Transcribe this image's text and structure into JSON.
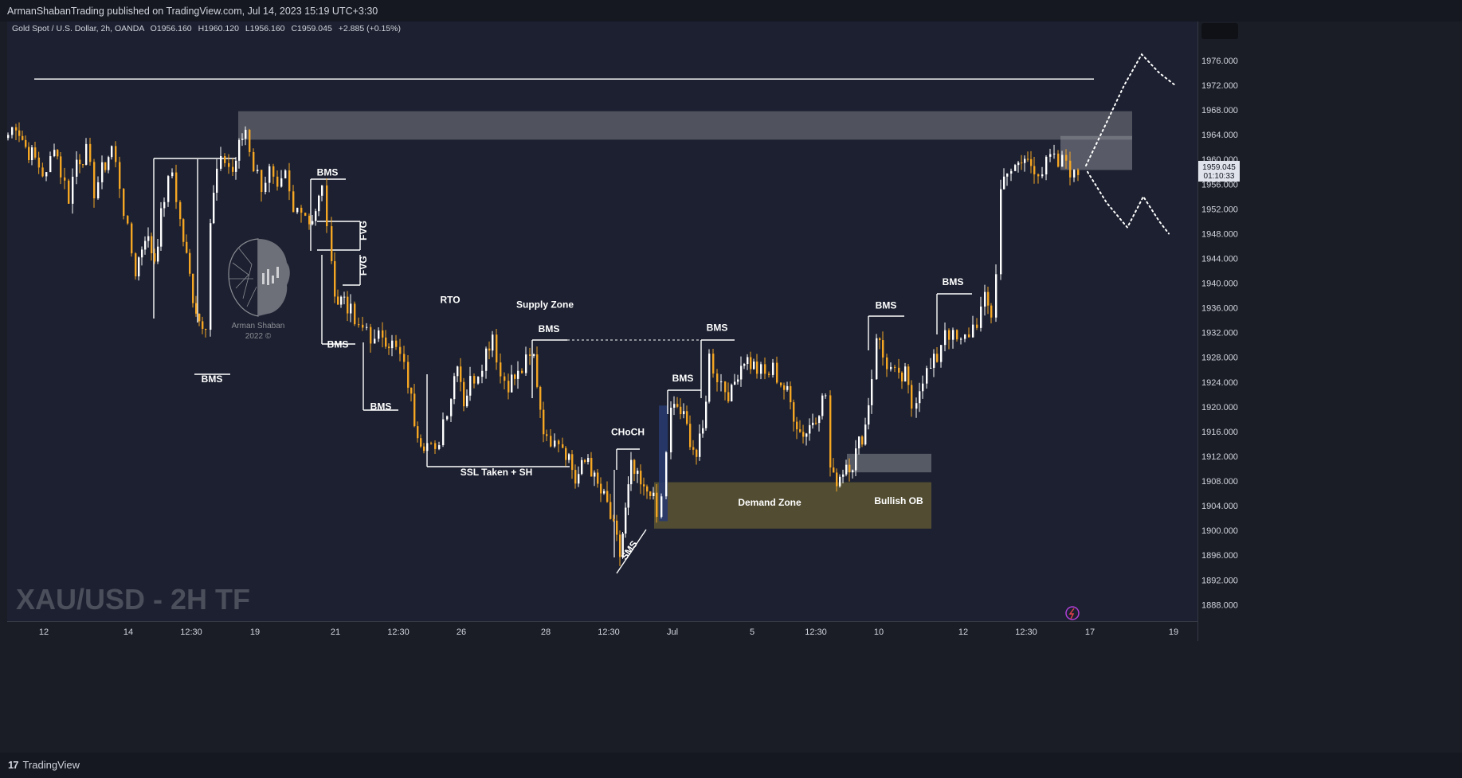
{
  "header": {
    "publish_line": "ArmanShabanTrading published on TradingView.com, Jul 14, 2023 15:19 UTC+3:30"
  },
  "legend": {
    "symbol": "Gold Spot / U.S. Dollar, 2h, OANDA",
    "open": "O1956.160",
    "high": "H1960.120",
    "low": "L1956.160",
    "close": "C1959.045",
    "change": "+2.885 (+0.15%)"
  },
  "price_badge": {
    "price": "1959.045",
    "countdown": "01:10:33"
  },
  "watermark": {
    "text": "XAU/USD - 2H TF"
  },
  "logo": {
    "name": "Arman Shaban",
    "year": "2022 ©"
  },
  "footer": {
    "brand": "TradingView",
    "logo_mark": "17"
  },
  "colors": {
    "bull": "#ffffff",
    "bear": "#f5a623",
    "background": "#1a1d26",
    "zone_gray": "#5f626c",
    "demand": "#5c5633",
    "choch_bar": "#283a6e"
  },
  "chart_data": {
    "type": "candlestick",
    "symbol": "XAU/USD",
    "timeframe": "2h",
    "y_axis": {
      "min": 1886,
      "max": 1980,
      "ticks": [
        1976,
        1972,
        1968,
        1964,
        1960,
        1956,
        1952,
        1948,
        1944,
        1940,
        1936,
        1932,
        1928,
        1924,
        1920,
        1916,
        1912,
        1908,
        1904,
        1900,
        1896,
        1892,
        1888
      ],
      "tick_labels": [
        "1976.000",
        "1972.000",
        "1968.000",
        "1964.000",
        "1960.000",
        "1956.000",
        "1952.000",
        "1948.000",
        "1944.000",
        "1940.000",
        "1936.000",
        "1932.000",
        "1928.000",
        "1924.000",
        "1920.000",
        "1916.000",
        "1912.000",
        "1908.000",
        "1904.000",
        "1900.000",
        "1896.000",
        "1892.000",
        "1888.000"
      ],
      "position": "right"
    },
    "x_axis": {
      "labels": [
        "12",
        "14",
        "12:30",
        "19",
        "21",
        "12:30",
        "26",
        "28",
        "12:30",
        "Jul",
        "5",
        "12:30",
        "10",
        "12",
        "12:30",
        "17",
        "19"
      ]
    },
    "grid": false,
    "price_path": [
      [
        0,
        1964
      ],
      [
        10,
        1966
      ],
      [
        22,
        1962
      ],
      [
        34,
        1960
      ],
      [
        48,
        1957
      ],
      [
        58,
        1963
      ],
      [
        66,
        1958
      ],
      [
        76,
        1954
      ],
      [
        86,
        1960
      ],
      [
        98,
        1961
      ],
      [
        108,
        1955
      ],
      [
        118,
        1958
      ],
      [
        130,
        1962
      ],
      [
        140,
        1956
      ],
      [
        150,
        1948
      ],
      [
        160,
        1942
      ],
      [
        172,
        1948
      ],
      [
        184,
        1944
      ],
      [
        196,
        1954
      ],
      [
        206,
        1958
      ],
      [
        216,
        1950
      ],
      [
        224,
        1944
      ],
      [
        232,
        1938
      ],
      [
        240,
        1934
      ],
      [
        248,
        1934
      ],
      [
        254,
        1950
      ],
      [
        262,
        1958
      ],
      [
        272,
        1960
      ],
      [
        282,
        1958
      ],
      [
        290,
        1962
      ],
      [
        298,
        1965
      ],
      [
        308,
        1959
      ],
      [
        318,
        1956
      ],
      [
        328,
        1958
      ],
      [
        338,
        1954
      ],
      [
        348,
        1957
      ],
      [
        358,
        1951
      ],
      [
        368,
        1953
      ],
      [
        378,
        1950
      ],
      [
        386,
        1952
      ],
      [
        394,
        1955
      ],
      [
        400,
        1950
      ],
      [
        406,
        1942
      ],
      [
        414,
        1937
      ],
      [
        422,
        1938
      ],
      [
        430,
        1935
      ],
      [
        440,
        1932
      ],
      [
        450,
        1933
      ],
      [
        460,
        1930
      ],
      [
        470,
        1932
      ],
      [
        482,
        1930
      ],
      [
        492,
        1928
      ],
      [
        502,
        1924
      ],
      [
        510,
        1918
      ],
      [
        518,
        1915
      ],
      [
        526,
        1914
      ],
      [
        536,
        1912
      ],
      [
        546,
        1918
      ],
      [
        556,
        1922
      ],
      [
        564,
        1928
      ],
      [
        572,
        1921
      ],
      [
        580,
        1924
      ],
      [
        590,
        1926
      ],
      [
        600,
        1929
      ],
      [
        608,
        1932
      ],
      [
        618,
        1925
      ],
      [
        628,
        1924
      ],
      [
        640,
        1925
      ],
      [
        650,
        1927
      ],
      [
        660,
        1928
      ],
      [
        668,
        1920
      ],
      [
        676,
        1914
      ],
      [
        686,
        1916
      ],
      [
        696,
        1914
      ],
      [
        704,
        1912
      ],
      [
        712,
        1908
      ],
      [
        720,
        1910
      ],
      [
        728,
        1912
      ],
      [
        736,
        1908
      ],
      [
        744,
        1906
      ],
      [
        752,
        1904
      ],
      [
        760,
        1900
      ],
      [
        768,
        1896
      ],
      [
        775,
        1903
      ],
      [
        782,
        1910
      ],
      [
        790,
        1908
      ],
      [
        798,
        1906
      ],
      [
        806,
        1907
      ],
      [
        814,
        1902
      ],
      [
        820,
        1905
      ],
      [
        826,
        1913
      ],
      [
        832,
        1919
      ],
      [
        840,
        1920
      ],
      [
        848,
        1918
      ],
      [
        856,
        1915
      ],
      [
        864,
        1912
      ],
      [
        872,
        1916
      ],
      [
        880,
        1928
      ],
      [
        890,
        1925
      ],
      [
        900,
        1923
      ],
      [
        908,
        1922
      ],
      [
        916,
        1926
      ],
      [
        924,
        1928
      ],
      [
        932,
        1927
      ],
      [
        940,
        1926
      ],
      [
        950,
        1925
      ],
      [
        960,
        1926
      ],
      [
        970,
        1924
      ],
      [
        978,
        1922
      ],
      [
        986,
        1919
      ],
      [
        994,
        1916
      ],
      [
        1002,
        1916
      ],
      [
        1010,
        1918
      ],
      [
        1018,
        1920
      ],
      [
        1026,
        1922
      ],
      [
        1032,
        1910
      ],
      [
        1036,
        1908
      ],
      [
        1044,
        1909
      ],
      [
        1052,
        1911
      ],
      [
        1060,
        1911
      ],
      [
        1068,
        1914
      ],
      [
        1076,
        1917
      ],
      [
        1084,
        1925
      ],
      [
        1090,
        1932
      ],
      [
        1098,
        1928
      ],
      [
        1108,
        1926
      ],
      [
        1118,
        1924
      ],
      [
        1126,
        1925
      ],
      [
        1134,
        1920
      ],
      [
        1140,
        1922
      ],
      [
        1148,
        1925
      ],
      [
        1158,
        1926
      ],
      [
        1166,
        1928
      ],
      [
        1176,
        1933
      ],
      [
        1186,
        1931
      ],
      [
        1196,
        1930
      ],
      [
        1206,
        1932
      ],
      [
        1216,
        1934
      ],
      [
        1226,
        1937
      ],
      [
        1234,
        1935
      ],
      [
        1240,
        1942
      ],
      [
        1246,
        1955
      ],
      [
        1254,
        1959
      ],
      [
        1264,
        1958
      ],
      [
        1276,
        1960
      ],
      [
        1288,
        1959
      ],
      [
        1298,
        1958
      ],
      [
        1308,
        1960
      ],
      [
        1318,
        1959
      ],
      [
        1328,
        1960
      ],
      [
        1338,
        1957
      ],
      [
        1348,
        1959
      ]
    ],
    "drawings": [
      {
        "kind": "hline",
        "label": "",
        "y": 1973,
        "x1": 34,
        "x2": 1364
      },
      {
        "kind": "zone",
        "label": "",
        "y_top": 1967.8,
        "y_bottom": 1963.2,
        "x1": 290,
        "x2": 1412
      },
      {
        "kind": "zone",
        "label": "",
        "y_top": 1963.8,
        "y_bottom": 1958.3,
        "x1": 1322,
        "x2": 1412
      },
      {
        "kind": "zone",
        "label": "Bullish OB",
        "y_top": 1912.4,
        "y_bottom": 1909.4,
        "x1": 1054,
        "x2": 1160
      },
      {
        "kind": "zone",
        "label": "Demand Zone",
        "y_top": 1907.8,
        "y_bottom": 1900.3,
        "x1": 812,
        "x2": 1160
      },
      {
        "kind": "zone",
        "label": "",
        "y_top": 1920.2,
        "y_bottom": 1901.5,
        "x1": 818,
        "x2": 829
      }
    ],
    "annotations": [
      {
        "text": "BMS",
        "x": 266,
        "y": 1924.0
      },
      {
        "text": "BMS",
        "x": 411,
        "y": 1957.4
      },
      {
        "text": "FVG",
        "x": 460,
        "y": 1948.5
      },
      {
        "text": "FVG",
        "x": 460,
        "y": 1942.8
      },
      {
        "text": "BMS",
        "x": 424,
        "y": 1929.6
      },
      {
        "text": "BMS",
        "x": 478,
        "y": 1919.5
      },
      {
        "text": "RTO",
        "x": 565,
        "y": 1936.8
      },
      {
        "text": "Supply Zone",
        "x": 684,
        "y": 1936.0
      },
      {
        "text": "BMS",
        "x": 689,
        "y": 1932.1
      },
      {
        "text": "BMS",
        "x": 900,
        "y": 1932.3
      },
      {
        "text": "BMS",
        "x": 857,
        "y": 1924.1
      },
      {
        "text": "CHoCH",
        "x": 788,
        "y": 1915.4
      },
      {
        "text": "SSL Taken + SH",
        "x": 623,
        "y": 1908.9
      },
      {
        "text": "SMS",
        "x": 793,
        "y": 1896.5
      },
      {
        "text": "Demand Zone",
        "x": 966,
        "y": 1904.0
      },
      {
        "text": "Bullish OB",
        "x": 1128,
        "y": 1904.3
      },
      {
        "text": "BMS",
        "x": 1112,
        "y": 1935.9
      },
      {
        "text": "BMS",
        "x": 1196,
        "y": 1939.7
      }
    ],
    "projection_paths": [
      {
        "label": "",
        "points": [
          [
            1354,
            1959
          ],
          [
            1380,
            1966
          ],
          [
            1402,
            1972
          ],
          [
            1424,
            1977
          ],
          [
            1446,
            1974
          ],
          [
            1466,
            1972
          ]
        ]
      },
      {
        "label": "",
        "points": [
          [
            1356,
            1958
          ],
          [
            1380,
            1953
          ],
          [
            1406,
            1949
          ],
          [
            1426,
            1954
          ],
          [
            1446,
            1950
          ],
          [
            1458,
            1948
          ]
        ]
      }
    ]
  }
}
